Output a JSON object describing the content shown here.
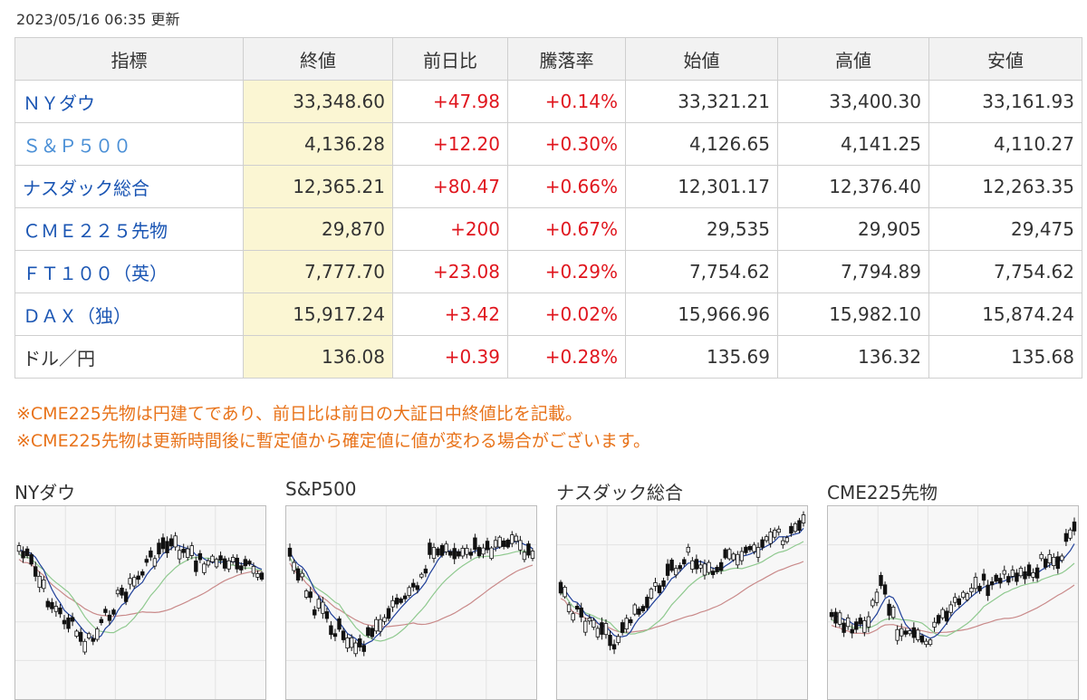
{
  "updated": "2023/05/16 06:35 更新",
  "table": {
    "headers": [
      "指標",
      "終値",
      "前日比",
      "騰落率",
      "始値",
      "高値",
      "安値"
    ],
    "rows": [
      {
        "name": "ＮＹダウ",
        "close": "33,348.60",
        "change": "+47.98",
        "pct": "+0.14%",
        "open": "33,321.21",
        "high": "33,400.30",
        "low": "33,161.93"
      },
      {
        "name": "Ｓ＆Ｐ５００",
        "close": "4,136.28",
        "change": "+12.20",
        "pct": "+0.30%",
        "open": "4,126.65",
        "high": "4,141.25",
        "low": "4,110.27"
      },
      {
        "name": "ナスダック総合",
        "close": "12,365.21",
        "change": "+80.47",
        "pct": "+0.66%",
        "open": "12,301.17",
        "high": "12,376.40",
        "low": "12,263.35"
      },
      {
        "name": "ＣＭＥ２２５先物",
        "close": "29,870",
        "change": "+200",
        "pct": "+0.67%",
        "open": "29,535",
        "high": "29,905",
        "low": "29,475"
      },
      {
        "name": "ＦＴ１００（英）",
        "close": "7,777.70",
        "change": "+23.08",
        "pct": "+0.29%",
        "open": "7,754.62",
        "high": "7,794.89",
        "low": "7,754.62"
      },
      {
        "name": "ＤＡＸ（独）",
        "close": "15,917.24",
        "change": "+3.42",
        "pct": "+0.02%",
        "open": "15,966.96",
        "high": "15,982.10",
        "low": "15,874.24"
      },
      {
        "name": "ドル／円",
        "close": "136.08",
        "change": "+0.39",
        "pct": "+0.28%",
        "open": "135.69",
        "high": "136.32",
        "low": "135.68"
      }
    ]
  },
  "notes": [
    "※CME225先物は円建てであり、前日比は前日の大証日中終値比を記載。",
    "※CME225先物は更新時間後に暫定値から確定値に値が変わる場合がございます。"
  ],
  "charts": [
    {
      "title": "NYダウ"
    },
    {
      "title": "S&P500"
    },
    {
      "title": "ナスダック総合"
    },
    {
      "title": "CME225先物"
    }
  ],
  "colors": {
    "link": "#1a55b3",
    "up": "#e0161e",
    "note": "#e8731a",
    "close_bg": "#fbf6d3"
  }
}
